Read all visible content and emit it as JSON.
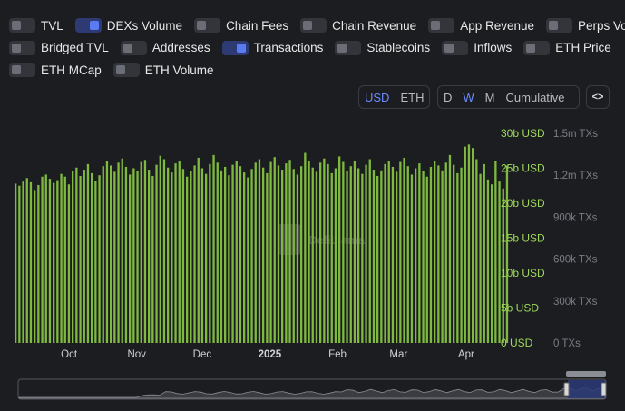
{
  "toggles": [
    [
      {
        "label": "TVL",
        "on": false
      },
      {
        "label": "DEXs Volume",
        "on": true
      },
      {
        "label": "Chain Fees",
        "on": false
      },
      {
        "label": "Chain Revenue",
        "on": false
      },
      {
        "label": "App Revenue",
        "on": false
      },
      {
        "label": "Perps Volume",
        "on": false
      }
    ],
    [
      {
        "label": "Bridged TVL",
        "on": false
      },
      {
        "label": "Addresses",
        "on": false
      },
      {
        "label": "Transactions",
        "on": true
      },
      {
        "label": "Stablecoins",
        "on": false
      },
      {
        "label": "Inflows",
        "on": false
      },
      {
        "label": "ETH Price",
        "on": false
      }
    ],
    [
      {
        "label": "ETH MCap",
        "on": false
      },
      {
        "label": "ETH Volume",
        "on": false
      }
    ]
  ],
  "denomination": {
    "options": [
      "USD",
      "ETH"
    ],
    "selected": "USD"
  },
  "period": {
    "options": [
      "D",
      "W",
      "M",
      "Cumulative"
    ],
    "selected": "W"
  },
  "embed_icon": "code-brackets-icon",
  "watermark": "DefiLlama",
  "colors": {
    "bar": "#7fb93f",
    "axis_left": "#9ed65a",
    "axis_right": "#7a7d86",
    "accent": "#5b7bf5"
  },
  "chart_data": {
    "type": "bar",
    "title": "",
    "x_ticks": [
      "Oct",
      "Nov",
      "Dec",
      "2025",
      "Feb",
      "Mar",
      "Apr"
    ],
    "x_tick_bold": "2025",
    "x_range": [
      "2024-09-06",
      "2025-04-21"
    ],
    "y_left": {
      "unit": "USD",
      "ticks": [
        "30b USD",
        "25b USD",
        "20b USD",
        "15b USD",
        "10b USD",
        "5b USD",
        "0 USD"
      ],
      "ylim": [
        0,
        30
      ]
    },
    "y_right": {
      "unit": "TXs",
      "ticks": [
        "1.5m TXs",
        "1.2m TXs",
        "900k TXs",
        "600k TXs",
        "300k TXs",
        "0 TXs"
      ],
      "ylim": [
        0,
        1500000
      ]
    },
    "series": [
      {
        "name": "DEXs Volume",
        "axis": "left",
        "unit": "b USD",
        "values": [
          22.8,
          22.5,
          23.1,
          23.6,
          23.0,
          21.9,
          22.6,
          23.8,
          24.1,
          23.5,
          22.9,
          23.3,
          24.2,
          23.8,
          22.7,
          24.6,
          25.1,
          23.9,
          24.8,
          25.6,
          24.3,
          23.2,
          24.0,
          25.3,
          26.1,
          25.4,
          24.5,
          25.8,
          26.4,
          25.2,
          24.1,
          25.0,
          24.6,
          25.9,
          26.2,
          24.8,
          23.9,
          25.5,
          26.8,
          26.3,
          25.1,
          24.4,
          25.7,
          26.0,
          24.9,
          23.8,
          24.6,
          25.4,
          26.5,
          25.0,
          24.2,
          25.6,
          26.9,
          25.8,
          24.7,
          25.2,
          24.0,
          25.5,
          26.1,
          25.3,
          24.4,
          23.7,
          24.9,
          25.8,
          26.3,
          25.1,
          24.3,
          25.9,
          26.6,
          25.4,
          24.8,
          25.7,
          26.2,
          24.9,
          24.1,
          25.3,
          27.2,
          26.0,
          25.1,
          24.5,
          25.8,
          26.4,
          25.6,
          24.3,
          25.0,
          26.7,
          25.9,
          24.6,
          25.3,
          26.1,
          25.0,
          24.2,
          25.5,
          26.3,
          24.8,
          23.9,
          24.7,
          25.6,
          26.0,
          25.2,
          24.5,
          25.9,
          26.5,
          25.3,
          24.1,
          25.0,
          25.7,
          24.6,
          23.8,
          25.2,
          26.1,
          25.4,
          24.7,
          25.8,
          26.9,
          25.5,
          24.3,
          25.1,
          28.1,
          28.4,
          27.9,
          26.3,
          24.2,
          25.6,
          23.4,
          22.7,
          26.0,
          23.1,
          22.1,
          25.4
        ]
      },
      {
        "name": "Transactions",
        "axis": "right",
        "unit": "TXs",
        "values": []
      }
    ]
  }
}
